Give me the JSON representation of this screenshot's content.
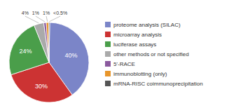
{
  "chart_data": {
    "type": "pie",
    "categories": [
      "proteome analysis (SILAC)",
      "microarray analysis",
      "luciferase assays",
      "other methods or not specified",
      "5'-RACE",
      "immunoblotting (only)",
      "mRNA-RISC coimmunoprecipitation"
    ],
    "values": [
      40,
      30,
      24,
      4,
      1,
      1,
      0.4
    ],
    "value_labels": [
      "40%",
      "30%",
      "24%",
      "4%",
      "1%",
      "1%",
      "<0.5%"
    ],
    "colors": [
      "#7b85c8",
      "#cc3333",
      "#4a9e4a",
      "#aaaaaa",
      "#8b5a9e",
      "#e8962b",
      "#555555"
    ],
    "data_labels": true,
    "legend": "right"
  }
}
